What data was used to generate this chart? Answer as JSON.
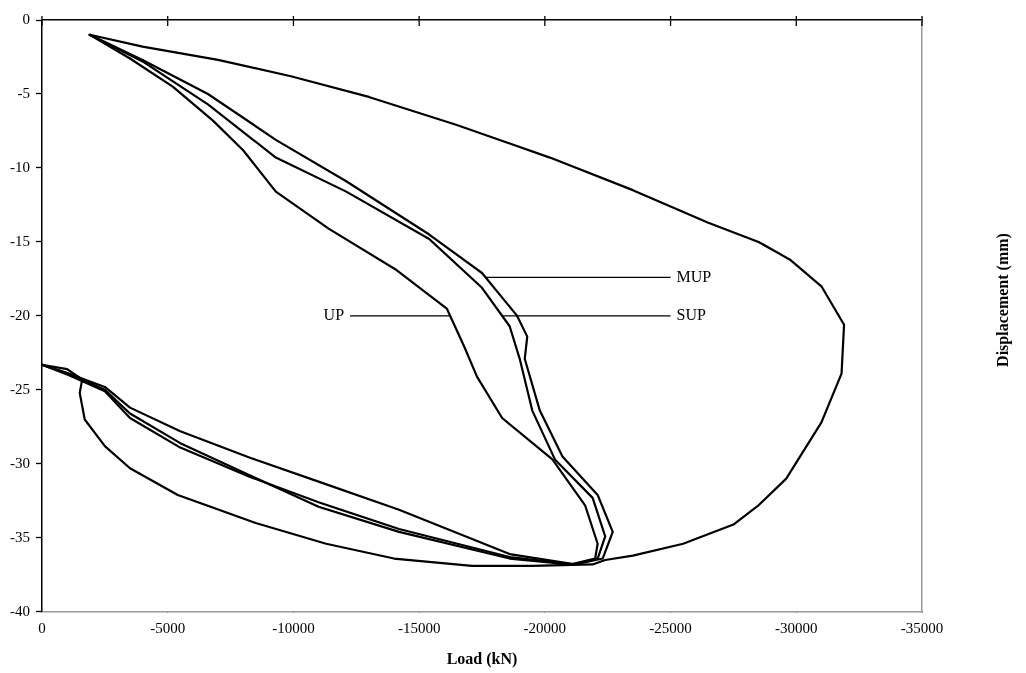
{
  "chart_data": {
    "type": "line",
    "xlabel": "Load (kN)",
    "ylabel": "Displacement (mm)",
    "xlim": [
      0,
      -35000
    ],
    "xticks": [
      0,
      -5000,
      -10000,
      -15000,
      -20000,
      -25000,
      -30000,
      -35000
    ],
    "ylim": [
      -40,
      0
    ],
    "yticks": [
      0,
      -5,
      -10,
      -15,
      -20,
      -25,
      -30,
      -35,
      -40
    ],
    "grid": false,
    "legend": false,
    "marker": "none",
    "line_style": "solid",
    "series": [
      {
        "color": "#000000",
        "x": [
          -1900,
          -4000,
          -7000,
          -9900,
          -13000,
          -16500,
          -20200,
          -23500,
          -26500,
          -28500,
          -29750,
          -31000,
          -31900,
          -31800,
          -31000,
          -29600,
          -28500,
          -27500,
          -25500,
          -23500,
          -22400,
          -21900,
          -19500,
          -17100,
          -14000,
          -11300,
          -8500,
          -5400,
          -3500,
          -2500,
          -1700,
          -1500,
          -1600,
          -1000,
          0
        ],
        "values": [
          -1,
          -1.8,
          -2.7,
          -3.8,
          -5.2,
          -7.1,
          -9.3,
          -11.5,
          -13.7,
          -15,
          -16.2,
          -18,
          -20.6,
          -23.9,
          -27.2,
          -31,
          -32.8,
          -34.1,
          -35.4,
          -36.2,
          -36.5,
          -36.8,
          -36.9,
          -36.9,
          -36.4,
          -35.4,
          -34,
          -32.1,
          -30.3,
          -28.8,
          -27,
          -25.2,
          -24.3,
          -23.6,
          -23.3
        ]
      },
      {
        "color": "#000000",
        "x": [
          -1900,
          -3500,
          -5200,
          -6800,
          -8000,
          -9300,
          -11400,
          -14100,
          -16100,
          -16800,
          -17300,
          -18300,
          -20300,
          -21600,
          -22100,
          -22000,
          -21000,
          -18600,
          -14200,
          -11000,
          -8300,
          -5500,
          -3500,
          -2500,
          -1050,
          0
        ],
        "values": [
          -1,
          -2.6,
          -4.5,
          -6.8,
          -8.8,
          -11.6,
          -14.1,
          -16.9,
          -19.5,
          -22.1,
          -24.1,
          -26.9,
          -29.7,
          -32.8,
          -35.4,
          -36.4,
          -36.8,
          -36.4,
          -34.6,
          -32.9,
          -30.8,
          -28.6,
          -26.6,
          -25,
          -23.9,
          -23.3
        ]
      },
      {
        "color": "#000000",
        "x": [
          -1900,
          -4000,
          -6600,
          -9300,
          -12100,
          -15400,
          -17500,
          -18900,
          -19300,
          -19200,
          -19800,
          -20700,
          -22100,
          -22700,
          -22300,
          -21200,
          -18600,
          -14200,
          -11000,
          -8300,
          -5500,
          -3500,
          -2500,
          -1050,
          0
        ],
        "values": [
          -1,
          -2.7,
          -5,
          -8.1,
          -10.9,
          -14.5,
          -17.1,
          -20,
          -21.4,
          -22.9,
          -26.4,
          -29.5,
          -32.1,
          -34.6,
          -36.4,
          -36.8,
          -36.1,
          -33.1,
          -31.2,
          -29.6,
          -27.8,
          -26.2,
          -24.8,
          -23.9,
          -23.3
        ]
      },
      {
        "color": "#000000",
        "x": [
          -1900,
          -4000,
          -6600,
          -9300,
          -12100,
          -15400,
          -17500,
          -18600,
          -19000,
          -19500,
          -20400,
          -21900,
          -22400,
          -22100,
          -21100,
          -18600,
          -14200,
          -11000,
          -8300,
          -5500,
          -3500,
          -2500,
          -1050,
          0
        ],
        "values": [
          -1,
          -2.8,
          -5.7,
          -9.3,
          -11.6,
          -14.8,
          -18.1,
          -20.7,
          -22.9,
          -26.4,
          -29.7,
          -32.3,
          -34.9,
          -36.4,
          -36.8,
          -36.3,
          -34.4,
          -32.6,
          -30.9,
          -28.9,
          -26.9,
          -25.1,
          -24,
          -23.3
        ]
      }
    ],
    "annotations": [
      {
        "text": "MUP",
        "x": -17650,
        "y": -17.4
      },
      {
        "text": "SUP",
        "x": -18300,
        "y": -20
      },
      {
        "text": "UP",
        "x": -16230,
        "y": -20
      }
    ]
  }
}
